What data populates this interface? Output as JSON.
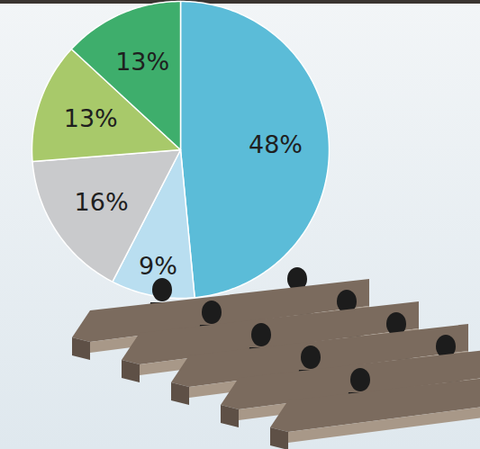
{
  "chart_data": {
    "type": "pie",
    "values": [
      48,
      9,
      16,
      13,
      13
    ],
    "value_labels": [
      "48%",
      "9%",
      "16%",
      "13%",
      "13%"
    ],
    "colors": [
      "#5bbcd8",
      "#b9def0",
      "#c9cacc",
      "#a8c96a",
      "#3eae6c"
    ],
    "data_labels": true
  }
}
